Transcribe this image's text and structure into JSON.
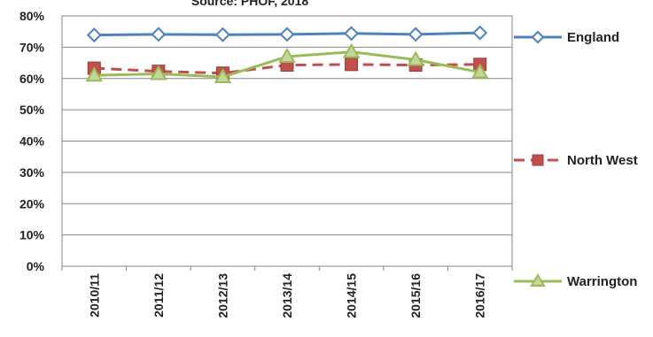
{
  "chart_data": {
    "type": "line",
    "title": "Source: PHOF, 2018",
    "xlabel": "",
    "ylabel": "",
    "categories": [
      "2010/11",
      "2011/12",
      "2012/13",
      "2013/14",
      "2014/15",
      "2015/16",
      "2016/17"
    ],
    "ylim": [
      0,
      80
    ],
    "yticks": [
      "0%",
      "10%",
      "20%",
      "30%",
      "40%",
      "50%",
      "60%",
      "70%",
      "80%"
    ],
    "grid": true,
    "legend_position": "right",
    "series": [
      {
        "name": "England",
        "values": [
          73.9,
          74.1,
          74.0,
          74.1,
          74.4,
          74.1,
          74.6
        ],
        "color": "#4f81bd",
        "marker": "diamond",
        "dash": "solid"
      },
      {
        "name": "North West",
        "values": [
          63.3,
          62.3,
          61.7,
          64.3,
          64.5,
          64.3,
          64.5
        ],
        "color": "#c0504d",
        "marker": "square",
        "dash": "dashed"
      },
      {
        "name": "Warrington",
        "values": [
          61.0,
          61.5,
          60.5,
          67.0,
          68.5,
          66.0,
          62.0
        ],
        "color": "#9bbb59",
        "marker": "triangle",
        "dash": "solid"
      }
    ]
  }
}
